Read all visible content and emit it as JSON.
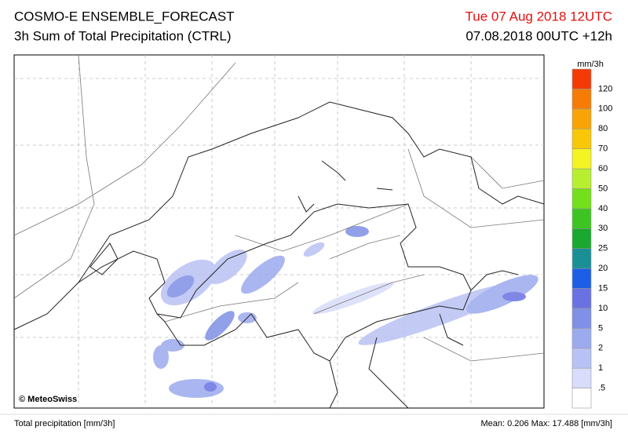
{
  "header": {
    "title": "COSMO-E ENSEMBLE_FORECAST",
    "subtitle": "3h Sum of Total Precipitation (CTRL)",
    "valid_time": "Tue 07 Aug 2018 12UTC",
    "run_time": "07.08.2018 00UTC +12h"
  },
  "map": {
    "credit": "© MeteoSwiss"
  },
  "legend": {
    "unit": "mm/3h",
    "labels": [
      ".5",
      "1",
      "2",
      "5",
      "10",
      "15",
      "20",
      "25",
      "30",
      "40",
      "50",
      "60",
      "70",
      "80",
      "100",
      "120"
    ],
    "colors": [
      "#ffffff",
      "#d9dcfa",
      "#b9c2f4",
      "#9caaee",
      "#7f90e6",
      "#6a72e2",
      "#1c5fe6",
      "#1a8f96",
      "#1aa830",
      "#3ec422",
      "#74e01c",
      "#b8ee30",
      "#f4f422",
      "#f8c806",
      "#f8a406",
      "#f67c06",
      "#f43a06"
    ]
  },
  "footer": {
    "left": "Total precipitation [mm/3h]",
    "right": "Mean:  0.206 Max: 17.488 [mm/3h]"
  }
}
